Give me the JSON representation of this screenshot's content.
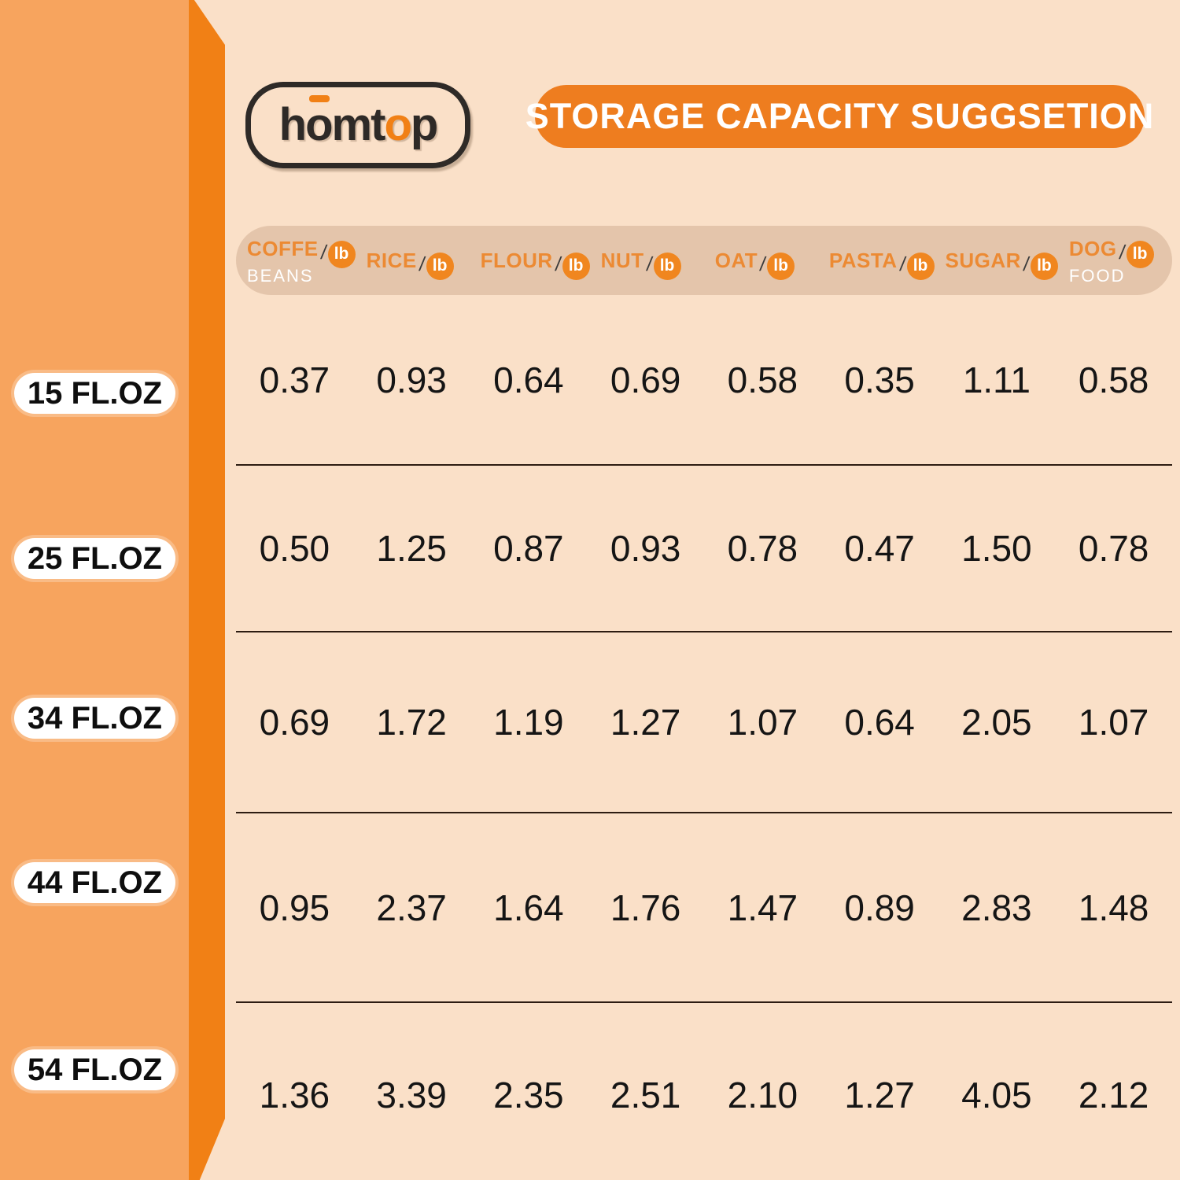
{
  "brand": {
    "logo_parts": {
      "pre": "h",
      "o_macron": "o",
      "mid": "mt",
      "o_jar": "o",
      "post": "p"
    }
  },
  "banner": {
    "title": "STORAGE CAPACITY SUGGSETION"
  },
  "table": {
    "unit": "lb",
    "slash": "/",
    "columns": [
      {
        "name": "COFFE",
        "sub": "BEANS"
      },
      {
        "name": "RICE",
        "sub": ""
      },
      {
        "name": "FLOUR",
        "sub": ""
      },
      {
        "name": "NUT",
        "sub": ""
      },
      {
        "name": "OAT",
        "sub": ""
      },
      {
        "name": "PASTA",
        "sub": ""
      },
      {
        "name": "SUGAR",
        "sub": ""
      },
      {
        "name": "DOG",
        "sub": "FOOD"
      }
    ],
    "rows": [
      {
        "label": "15 FL.OZ",
        "values": [
          "0.37",
          "0.93",
          "0.64",
          "0.69",
          "0.58",
          "0.35",
          "1.11",
          "0.58"
        ]
      },
      {
        "label": "25 FL.OZ",
        "values": [
          "0.50",
          "1.25",
          "0.87",
          "0.93",
          "0.78",
          "0.47",
          "1.50",
          "0.78"
        ]
      },
      {
        "label": "34 FL.OZ",
        "values": [
          "0.69",
          "1.72",
          "1.19",
          "1.27",
          "1.07",
          "0.64",
          "2.05",
          "1.07"
        ]
      },
      {
        "label": "44 FL.OZ",
        "values": [
          "0.95",
          "2.37",
          "1.64",
          "1.76",
          "1.47",
          "0.89",
          "2.83",
          "1.48"
        ]
      },
      {
        "label": "54 FL.OZ",
        "values": [
          "1.36",
          "3.39",
          "2.35",
          "2.51",
          "2.10",
          "1.27",
          "4.05",
          "2.12"
        ]
      }
    ]
  },
  "colors": {
    "background": "#FAE0C8",
    "band_light": "#F7A45E",
    "band_dark": "#F18015",
    "banner_orange": "#EE7D1F",
    "header_strip": "#E4C5AB",
    "header_text_orange": "#EC8A33",
    "unit_badge_orange": "#F0861F",
    "value_text": "#151515"
  },
  "chart_data": {
    "type": "table",
    "title": "STORAGE CAPACITY SUGGSETION",
    "columns": [
      "COFFE BEANS/lb",
      "RICE/lb",
      "FLOUR/lb",
      "NUT/lb",
      "OAT/lb",
      "PASTA/lb",
      "SUGAR/lb",
      "DOG FOOD/lb"
    ],
    "row_labels": [
      "15 FL.OZ",
      "25 FL.OZ",
      "34 FL.OZ",
      "44 FL.OZ",
      "54 FL.OZ"
    ],
    "values": [
      [
        0.37,
        0.93,
        0.64,
        0.69,
        0.58,
        0.35,
        1.11,
        0.58
      ],
      [
        0.5,
        1.25,
        0.87,
        0.93,
        0.78,
        0.47,
        1.5,
        0.78
      ],
      [
        0.69,
        1.72,
        1.19,
        1.27,
        1.07,
        0.64,
        2.05,
        1.07
      ],
      [
        0.95,
        2.37,
        1.64,
        1.76,
        1.47,
        0.89,
        2.83,
        1.48
      ],
      [
        1.36,
        3.39,
        2.35,
        2.51,
        2.1,
        1.27,
        4.05,
        2.12
      ]
    ],
    "units": "lb",
    "layout": "row labels are container sizes in fluid ounces; cells are weights in pounds"
  }
}
